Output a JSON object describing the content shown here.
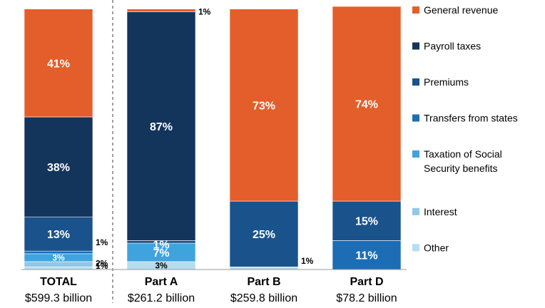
{
  "chart_data": {
    "type": "bar",
    "stacked": true,
    "normalized_percent": true,
    "categories": [
      {
        "name": "TOTAL",
        "total": "$599.3 billion"
      },
      {
        "name": "Part A",
        "total": "$261.2 billion"
      },
      {
        "name": "Part B",
        "total": "$259.8 billion"
      },
      {
        "name": "Part D",
        "total": "$78.2 billion"
      }
    ],
    "series": [
      {
        "name": "Other",
        "color": "#B4DDF0",
        "values": [
          1,
          3,
          1,
          0
        ],
        "labels": [
          "1%",
          "3%",
          "1%",
          ""
        ]
      },
      {
        "name": "Interest",
        "color": "#8FC8E8",
        "values": [
          2,
          0,
          0,
          0
        ],
        "labels": [
          "2%",
          "",
          "",
          ""
        ]
      },
      {
        "name": "Taxation of Social Security benefits",
        "color": "#3FA3DE",
        "values": [
          3,
          7,
          0,
          0
        ],
        "labels": [
          "3%",
          "7%",
          "",
          ""
        ]
      },
      {
        "name": "Transfers from states",
        "color": "#1C6DB6",
        "values": [
          1,
          0,
          0,
          11
        ],
        "labels": [
          "1%",
          "",
          "",
          "11%"
        ]
      },
      {
        "name": "Premiums",
        "color": "#1A528C",
        "values": [
          13,
          1,
          25,
          15
        ],
        "labels": [
          "13%",
          "1%",
          "25%",
          "15%"
        ]
      },
      {
        "name": "Payroll taxes",
        "color": "#13345B",
        "values": [
          38,
          87,
          0,
          0
        ],
        "labels": [
          "38%",
          "87%",
          "",
          ""
        ]
      },
      {
        "name": "General revenue",
        "color": "#E35E2A",
        "values": [
          41,
          1,
          73,
          74
        ],
        "labels": [
          "41%",
          "1%",
          "73%",
          "74%"
        ]
      }
    ],
    "legend_order": [
      "General revenue",
      "Payroll taxes",
      "Premiums",
      "Transfers from states",
      "Taxation of Social Security benefits",
      "Interest",
      "Other"
    ],
    "legend_position": "right",
    "ylim": [
      0,
      100
    ]
  }
}
